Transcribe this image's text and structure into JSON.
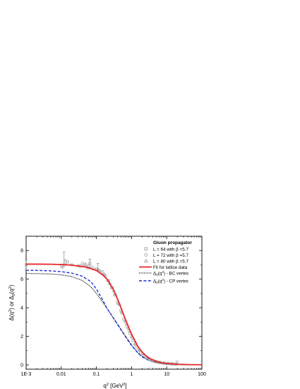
{
  "chart_data": {
    "type": "line",
    "xscale": "log",
    "xlim": [
      0.001,
      100
    ],
    "ylim": [
      -0.3,
      9
    ],
    "xticks": [
      0.001,
      0.01,
      0.1,
      1,
      10,
      100
    ],
    "xtick_labels": [
      "1E-3",
      "0.01",
      "0.1",
      "1",
      "10",
      "100"
    ],
    "yticks": [
      0,
      2,
      4,
      6,
      8
    ],
    "ytick_labels": [
      "0",
      "2",
      "4",
      "6",
      "8"
    ],
    "xlabel_parts": {
      "base": "q",
      "sup": "2",
      "rest": " [GeV",
      "sup2": "2",
      "end": "]"
    },
    "ylabel_parts": {
      "a": "Δ(q",
      "sup": "2",
      "b": ") or Δ",
      "sub": "0",
      "c": "(q",
      "sup2": "2",
      "d": ")"
    },
    "legend": {
      "title": "Gluon propagator",
      "position": "top-right",
      "entries": [
        {
          "label": "L = 64 with β =5.7",
          "marker": "square"
        },
        {
          "label": "L = 72 with β =5.7",
          "marker": "circle"
        },
        {
          "label": "L = 80 with β =5.7",
          "marker": "triangle"
        },
        {
          "label": "Fit for lattice data",
          "line": "solid"
        },
        {
          "label_parts": [
            "Δ",
            "0",
            "(q",
            "2",
            ") - BC vertex"
          ],
          "line": "dotted"
        },
        {
          "label_parts": [
            "Δ",
            "0",
            "(q",
            "2",
            ") - CP vertex"
          ],
          "line": "dashed"
        }
      ]
    },
    "series": [
      {
        "name": "Fit for lattice data",
        "style": "solid",
        "color": "#e8262a",
        "x": [
          0.001,
          0.002,
          0.005,
          0.01,
          0.02,
          0.05,
          0.1,
          0.15,
          0.2,
          0.3,
          0.4,
          0.5,
          0.7,
          1,
          1.5,
          2,
          3,
          5,
          7,
          10,
          20,
          50,
          100
        ],
        "y": [
          7.05,
          7.05,
          7.04,
          7.02,
          6.98,
          6.85,
          6.6,
          6.3,
          6.0,
          5.3,
          4.6,
          4.0,
          3.05,
          2.15,
          1.3,
          0.9,
          0.5,
          0.25,
          0.16,
          0.1,
          0.04,
          0.015,
          0.01
        ]
      },
      {
        "name": "Δ0(q2) - BC vertex",
        "style": "dotted",
        "color": "#000000",
        "x": [
          0.001,
          0.002,
          0.005,
          0.01,
          0.02,
          0.04,
          0.07,
          0.1,
          0.15,
          0.2,
          0.3,
          0.5,
          0.7,
          1,
          1.5,
          2,
          3,
          5,
          10,
          20,
          50,
          100
        ],
        "y": [
          6.4,
          6.39,
          6.36,
          6.3,
          6.18,
          5.9,
          5.45,
          5.0,
          4.4,
          3.95,
          3.3,
          2.5,
          1.95,
          1.4,
          0.85,
          0.58,
          0.35,
          0.18,
          0.07,
          0.03,
          0.01,
          0.005
        ]
      },
      {
        "name": "Δ0(q2) - CP vertex",
        "style": "dashed",
        "color": "#1f2fd0",
        "x": [
          0.001,
          0.002,
          0.005,
          0.01,
          0.02,
          0.04,
          0.07,
          0.1,
          0.15,
          0.2,
          0.3,
          0.5,
          0.7,
          1,
          1.5,
          2,
          3,
          5,
          10,
          20,
          50,
          100
        ],
        "y": [
          6.62,
          6.61,
          6.58,
          6.52,
          6.42,
          6.2,
          5.82,
          5.3,
          4.55,
          3.95,
          3.3,
          2.45,
          1.9,
          1.35,
          0.85,
          0.56,
          0.33,
          0.17,
          0.07,
          0.03,
          0.01,
          0.005
        ]
      },
      {
        "name": "L = 64 with β =5.7",
        "style": "markers",
        "marker": "square",
        "color": "#9a9a9a",
        "x": [
          0.001,
          0.01,
          0.0125,
          0.015,
          0.035,
          0.045,
          0.055,
          0.065,
          0.1,
          0.12,
          0.15,
          0.18,
          0.22,
          0.27,
          0.33,
          0.4,
          0.5,
          0.6,
          0.75,
          0.9,
          1.1,
          1.4,
          1.8,
          2.3,
          3,
          4,
          5,
          6.5,
          8.5,
          11,
          14,
          18,
          20
        ],
        "y": [
          7.0,
          6.9,
          7.0,
          7.2,
          6.9,
          7.0,
          6.8,
          7.1,
          6.7,
          6.6,
          6.5,
          6.2,
          5.9,
          5.4,
          4.9,
          4.4,
          3.8,
          3.2,
          2.7,
          2.2,
          1.7,
          1.25,
          0.9,
          0.65,
          0.45,
          0.3,
          0.22,
          0.16,
          0.12,
          0.09,
          0.07,
          0.06,
          0.2
        ]
      },
      {
        "name": "L = 72 with β =5.7",
        "style": "markers",
        "marker": "circle",
        "color": "#9a9a9a",
        "x": [
          0.011,
          0.02,
          0.04,
          0.06,
          0.09,
          0.13,
          0.17,
          0.21,
          0.28,
          0.35,
          0.45,
          0.55,
          0.7,
          0.85,
          1.05,
          1.3,
          1.7,
          2.2,
          2.9,
          3.8,
          5,
          6.5,
          8.5,
          11,
          15
        ],
        "y": [
          6.85,
          7.0,
          7.1,
          6.9,
          6.7,
          6.5,
          6.3,
          5.9,
          5.4,
          4.9,
          4.2,
          3.6,
          2.9,
          2.4,
          1.9,
          1.4,
          1.0,
          0.7,
          0.48,
          0.32,
          0.23,
          0.17,
          0.12,
          0.09,
          0.07
        ]
      },
      {
        "name": "L = 80 with β =5.7",
        "style": "markers",
        "marker": "triangle",
        "color": "#9a9a9a",
        "x": [
          0.013,
          0.03,
          0.05,
          0.075,
          0.11,
          0.16,
          0.24,
          0.31,
          0.42,
          0.52,
          0.65,
          0.8,
          1.0,
          1.25,
          1.6,
          2.1,
          2.7,
          3.5,
          4.6,
          6,
          8,
          10.5,
          14,
          19
        ],
        "y": [
          7.3,
          6.95,
          7.05,
          6.85,
          6.7,
          6.35,
          5.7,
          5.2,
          4.3,
          3.7,
          3.1,
          2.6,
          2.0,
          1.5,
          1.1,
          0.78,
          0.52,
          0.35,
          0.25,
          0.18,
          0.13,
          0.09,
          0.07,
          0.06
        ]
      }
    ],
    "error_bars": [
      {
        "x": 0.001,
        "y": 7.0,
        "err": 0.35
      },
      {
        "x": 0.012,
        "y": 7.45,
        "err": 0.45
      },
      {
        "x": 0.065,
        "y": 7.1,
        "err": 0.3
      },
      {
        "x": 0.11,
        "y": 6.85,
        "err": 0.25
      }
    ]
  }
}
